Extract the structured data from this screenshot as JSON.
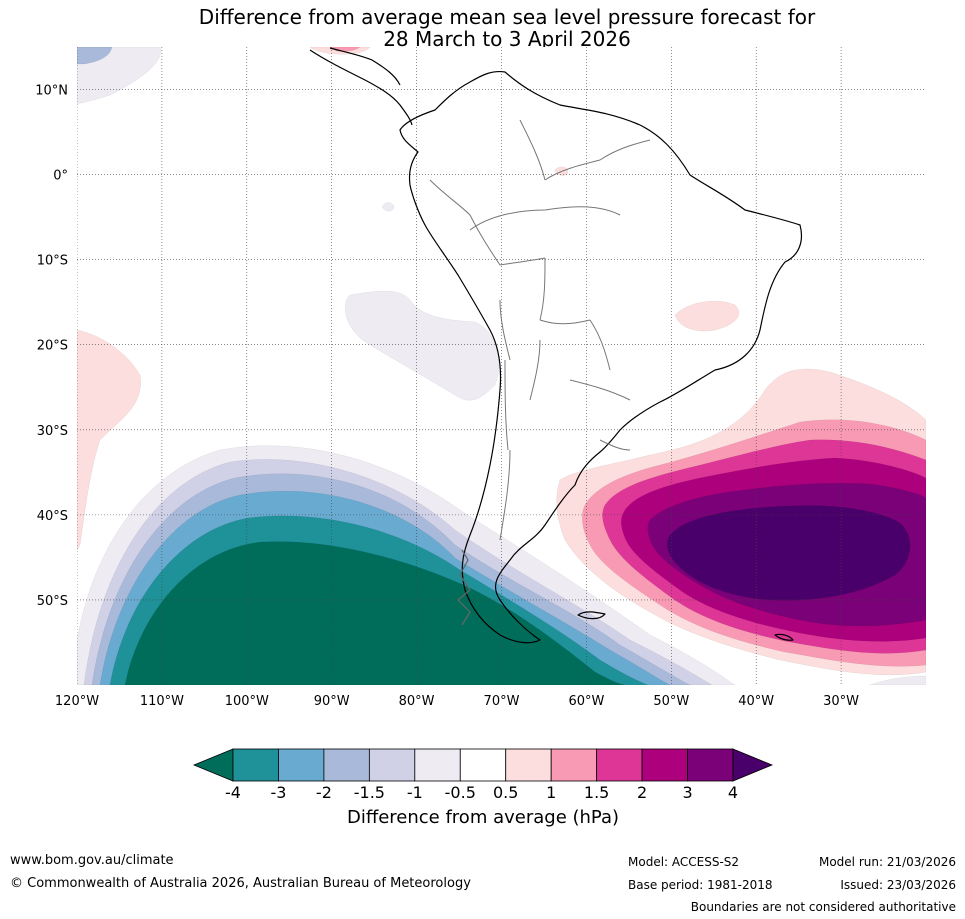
{
  "title": {
    "line1": "Difference from average mean sea level pressure forecast for",
    "line2": "28 March to 3 April 2026"
  },
  "map": {
    "latitude_labels": [
      "10°N",
      "0°",
      "10°S",
      "20°S",
      "30°S",
      "40°S",
      "50°S"
    ],
    "longitude_labels": [
      "120°W",
      "110°W",
      "100°W",
      "90°W",
      "80°W",
      "70°W",
      "60°W",
      "50°W",
      "40°W",
      "30°W"
    ],
    "latitudes": [
      10,
      0,
      -10,
      -20,
      -30,
      -40,
      -50
    ],
    "longitudes": [
      -120,
      -110,
      -100,
      -90,
      -80,
      -70,
      -60,
      -50,
      -40,
      -30
    ],
    "extent": {
      "lon_min": -120,
      "lon_max": -20,
      "lat_min": -60,
      "lat_max": 15
    },
    "fill_colors": {
      "lt_minus4": "#006d5b",
      "minus4_minus3": "#1e9199",
      "minus3_minus2": "#69aad0",
      "minus2_minus1_5": "#a8b9d9",
      "minus1_5_minus1": "#d0d1e6",
      "minus1_minus0_5": "#efebf3",
      "neutral": "#ffffff",
      "p0_5_p1": "#fddede",
      "p1_p1_5": "#f89ab3",
      "p1_5_p2": "#dd3697",
      "p2_p3": "#ad007c",
      "p3_p4": "#7a0177",
      "gt_p4": "#4a006a"
    }
  },
  "colorbar": {
    "title": "Difference from average (hPa)",
    "tick_labels": [
      "-4",
      "-3",
      "-2",
      "-1.5",
      "-1",
      "-0.5",
      "0.5",
      "1",
      "1.5",
      "2",
      "3",
      "4"
    ],
    "colors": [
      "#1e9199",
      "#69aad0",
      "#a8b9d9",
      "#d0d1e6",
      "#efebf3",
      "#ffffff",
      "#fddede",
      "#f89ab3",
      "#dd3697",
      "#ad007c",
      "#7a0177"
    ],
    "under_color": "#006d5b",
    "over_color": "#4a006a"
  },
  "footer": {
    "website": "www.bom.gov.au/climate",
    "copyright": "© Commonwealth of Australia 2026, Australian Bureau of Meteorology",
    "model": "Model: ACCESS-S2",
    "base_period": "Base period: 1981-2018",
    "model_run": "Model run: 21/03/2026",
    "issued": "Issued: 23/03/2026",
    "disclaimer": "Boundaries are not considered authoritative"
  }
}
